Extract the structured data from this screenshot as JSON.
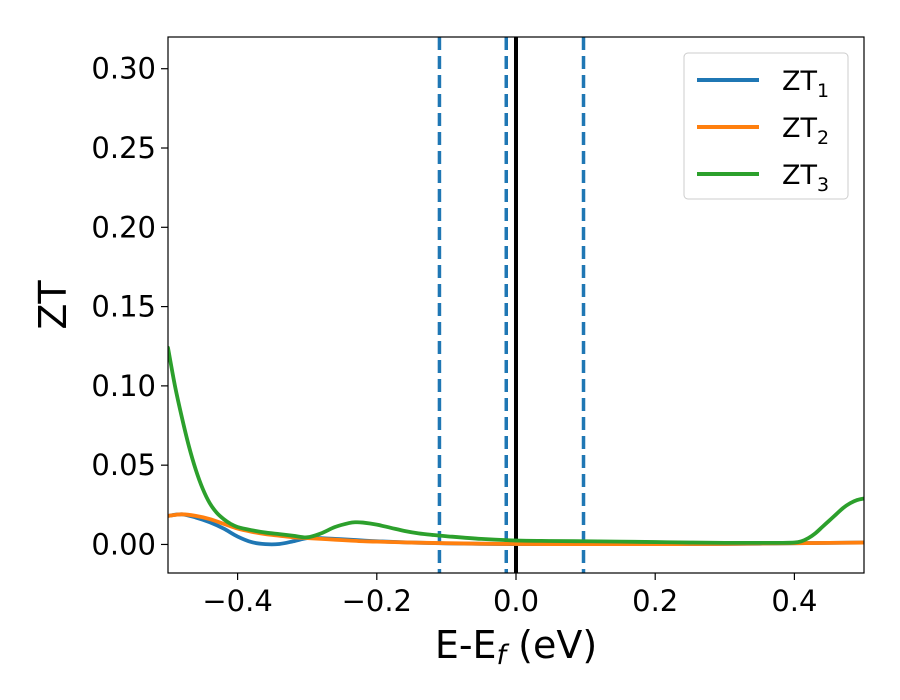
{
  "chart_data": {
    "type": "line",
    "xlabel": "E-E",
    "xlabel_sub": "f",
    "xlabel_unit": " (eV)",
    "ylabel": "ZT",
    "xlim": [
      -0.5,
      0.5
    ],
    "ylim": [
      -0.018,
      0.32
    ],
    "xticks": [
      -0.4,
      -0.2,
      0.0,
      0.2,
      0.4
    ],
    "xtick_labels": [
      "−0.4",
      "−0.2",
      "0.0",
      "0.2",
      "0.4"
    ],
    "yticks": [
      0.0,
      0.05,
      0.1,
      0.15,
      0.2,
      0.25,
      0.3
    ],
    "ytick_labels": [
      "0.00",
      "0.05",
      "0.10",
      "0.15",
      "0.20",
      "0.25",
      "0.30"
    ],
    "grid": false,
    "legend_position": "top-right",
    "colors": {
      "ZT1": "#1f77b4",
      "ZT2": "#ff7f0e",
      "ZT3": "#2ca02c",
      "zero_line": "#000000",
      "dashed_line": "#1f77b4"
    },
    "vertical_lines": [
      {
        "x": -0.11,
        "style": "dashed",
        "color": "#1f77b4"
      },
      {
        "x": -0.014,
        "style": "dashed",
        "color": "#1f77b4"
      },
      {
        "x": 0.0,
        "style": "solid",
        "color": "#000000"
      },
      {
        "x": 0.097,
        "style": "dashed",
        "color": "#1f77b4"
      }
    ],
    "series": [
      {
        "name": "ZT",
        "name_sub": "1",
        "color": "#1f77b4",
        "x": [
          -0.5,
          -0.48,
          -0.46,
          -0.44,
          -0.42,
          -0.4,
          -0.38,
          -0.36,
          -0.34,
          -0.32,
          -0.3,
          -0.28,
          -0.26,
          -0.24,
          -0.22,
          -0.2,
          -0.15,
          -0.1,
          -0.05,
          0.0,
          0.05,
          0.1,
          0.15,
          0.2,
          0.25,
          0.3,
          0.35,
          0.4,
          0.45,
          0.5
        ],
        "y": [
          0.018,
          0.019,
          0.017,
          0.014,
          0.01,
          0.005,
          0.0015,
          0.0002,
          0.0003,
          0.002,
          0.004,
          0.004,
          0.0035,
          0.003,
          0.0025,
          0.002,
          0.0012,
          0.0007,
          0.0004,
          0.0002,
          0.0002,
          0.0002,
          0.0002,
          0.0002,
          0.0002,
          0.0003,
          0.0005,
          0.0008,
          0.001,
          0.0012
        ]
      },
      {
        "name": "ZT",
        "name_sub": "2",
        "color": "#ff7f0e",
        "x": [
          -0.5,
          -0.48,
          -0.46,
          -0.44,
          -0.42,
          -0.4,
          -0.38,
          -0.36,
          -0.34,
          -0.32,
          -0.3,
          -0.28,
          -0.26,
          -0.24,
          -0.22,
          -0.2,
          -0.15,
          -0.1,
          -0.05,
          0.0,
          0.05,
          0.1,
          0.15,
          0.2,
          0.25,
          0.3,
          0.35,
          0.4,
          0.45,
          0.5
        ],
        "y": [
          0.018,
          0.019,
          0.018,
          0.016,
          0.013,
          0.01,
          0.008,
          0.0065,
          0.0055,
          0.0045,
          0.004,
          0.0035,
          0.003,
          0.0025,
          0.002,
          0.0018,
          0.0012,
          0.0008,
          0.0005,
          0.0003,
          0.0002,
          0.0002,
          0.0002,
          0.0002,
          0.0003,
          0.0004,
          0.0006,
          0.0008,
          0.001,
          0.0012
        ]
      },
      {
        "name": "ZT",
        "name_sub": "3",
        "color": "#2ca02c",
        "x": [
          -0.5,
          -0.49,
          -0.48,
          -0.47,
          -0.46,
          -0.45,
          -0.44,
          -0.43,
          -0.42,
          -0.41,
          -0.4,
          -0.38,
          -0.36,
          -0.34,
          -0.32,
          -0.3,
          -0.28,
          -0.26,
          -0.24,
          -0.23,
          -0.22,
          -0.2,
          -0.18,
          -0.16,
          -0.14,
          -0.12,
          -0.1,
          -0.05,
          0.0,
          0.05,
          0.1,
          0.15,
          0.2,
          0.25,
          0.3,
          0.35,
          0.38,
          0.4,
          0.41,
          0.42,
          0.43,
          0.44,
          0.45,
          0.46,
          0.47,
          0.48,
          0.49,
          0.5
        ],
        "y": [
          0.124,
          0.1,
          0.08,
          0.062,
          0.047,
          0.035,
          0.026,
          0.02,
          0.016,
          0.013,
          0.011,
          0.009,
          0.0075,
          0.0065,
          0.0055,
          0.0045,
          0.007,
          0.011,
          0.0135,
          0.014,
          0.0138,
          0.0125,
          0.0105,
          0.0085,
          0.007,
          0.006,
          0.0052,
          0.0035,
          0.0025,
          0.0022,
          0.002,
          0.0018,
          0.0015,
          0.0012,
          0.001,
          0.001,
          0.001,
          0.0012,
          0.002,
          0.004,
          0.007,
          0.011,
          0.015,
          0.019,
          0.023,
          0.026,
          0.028,
          0.029
        ]
      }
    ]
  }
}
